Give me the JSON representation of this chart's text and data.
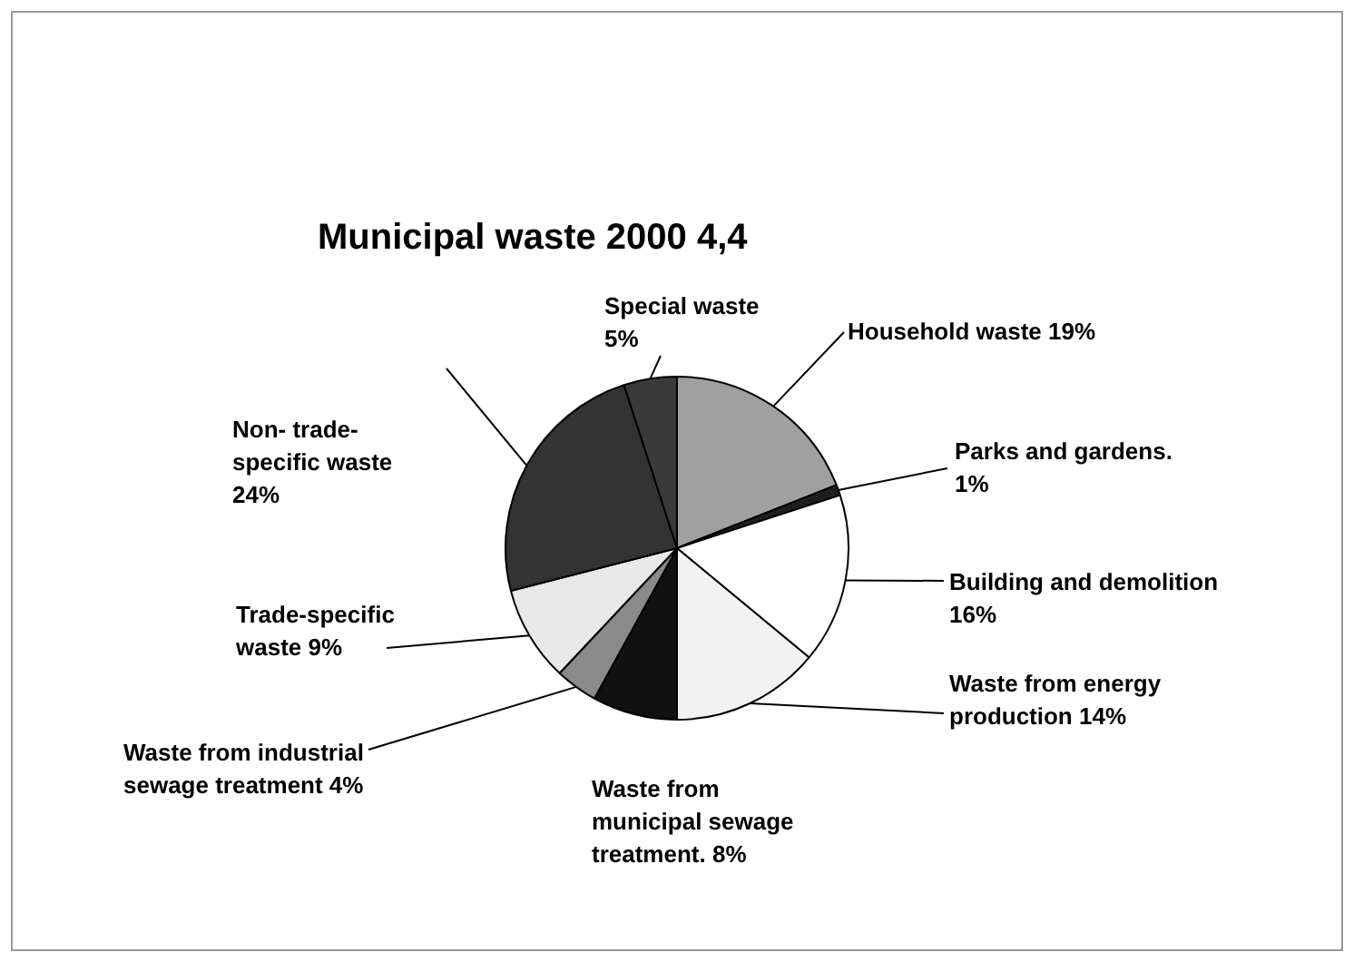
{
  "chart_data": {
    "type": "pie",
    "title": "Municipal waste 2000 4,4",
    "categories": [
      "Household waste",
      "Parks and gardens.",
      "Building and demolition",
      "Waste from energy production",
      "Waste from municipal sewage treatment.",
      "Waste from industrial sewage treatment",
      "Trade-specific waste",
      "Non- trade-specific waste",
      "Special waste"
    ],
    "values": [
      19,
      1,
      16,
      14,
      8,
      4,
      9,
      24,
      5
    ],
    "value_labels": [
      "19%",
      "1%",
      "16%",
      "14%",
      "8%",
      "4%",
      "9%",
      "24%",
      "5%"
    ],
    "colors": [
      "#a0a0a0",
      "#1e1e1e",
      "#ffffff",
      "#f2f2f2",
      "#111111",
      "#8a8a8a",
      "#e8e8e8",
      "#333333",
      "#3a3a3a"
    ],
    "legend": false
  }
}
